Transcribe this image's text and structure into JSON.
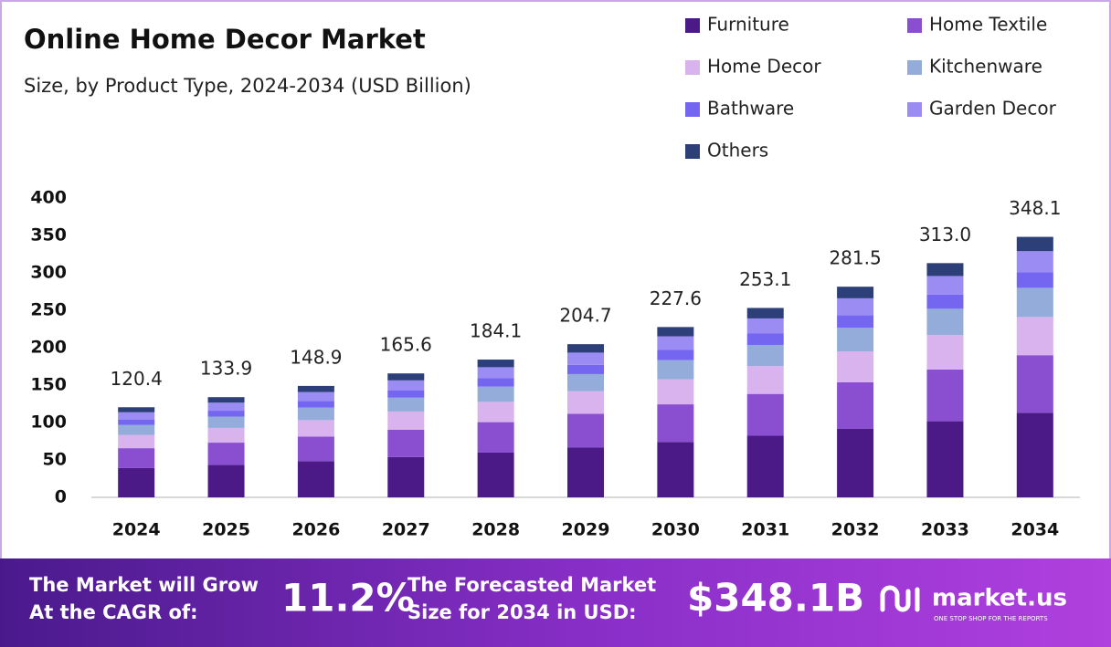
{
  "chart_data": {
    "type": "stacked-bar",
    "title": "Online Home Decor Market",
    "subtitle": "Size, by Product Type, 2024-2034 (USD Billion)",
    "categories": [
      "2024",
      "2025",
      "2026",
      "2027",
      "2028",
      "2029",
      "2030",
      "2031",
      "2032",
      "2033",
      "2034"
    ],
    "series": [
      {
        "name": "Furniture",
        "color": "#4b1a87",
        "values": [
          39.1,
          43.5,
          48.4,
          53.8,
          59.8,
          66.5,
          74.0,
          82.3,
          91.5,
          101.7,
          113
        ]
      },
      {
        "name": "Home Textile",
        "color": "#8a4fd0",
        "values": [
          26.6,
          29.6,
          32.9,
          36.6,
          40.7,
          45.2,
          50.3,
          55.9,
          62.2,
          69.2,
          77
        ]
      },
      {
        "name": "Home Decor",
        "color": "#d9b3ee",
        "values": [
          17.7,
          19.7,
          21.9,
          24.3,
          27.1,
          30.1,
          33.5,
          37.2,
          41.4,
          46.0,
          51
        ]
      },
      {
        "name": "Kitchenware",
        "color": "#93acd9",
        "values": [
          13.5,
          15.0,
          16.7,
          18.5,
          20.6,
          22.9,
          25.5,
          28.3,
          31.5,
          35.1,
          39
        ]
      },
      {
        "name": "Bathware",
        "color": "#7466f0",
        "values": [
          7.2,
          8.0,
          8.9,
          9.9,
          11.0,
          12.3,
          13.7,
          15.2,
          16.9,
          18.8,
          21
        ]
      },
      {
        "name": "Garden Decor",
        "color": "#9b8cf4",
        "values": [
          9.6,
          10.7,
          11.9,
          13.2,
          14.7,
          16.4,
          18.2,
          20.2,
          22.5,
          25.0,
          28
        ]
      },
      {
        "name": "Others",
        "color": "#2c3f78",
        "values": [
          6.7,
          7.4,
          8.2,
          9.3,
          10.2,
          11.3,
          12.4,
          14.0,
          15.5,
          17.2,
          19.1
        ]
      }
    ],
    "totals": [
      120.4,
      133.9,
      148.9,
      165.6,
      184.1,
      204.7,
      227.6,
      253.1,
      281.5,
      313.0,
      348.1
    ],
    "total_labels": [
      "120.4",
      "133.9",
      "148.9",
      "165.6",
      "184.1",
      "204.7",
      "227.6",
      "253.1",
      "281.5",
      "313.0",
      "348.1"
    ],
    "ylim": [
      0,
      400
    ],
    "yticks": [
      0,
      50,
      100,
      150,
      200,
      250,
      300,
      350,
      400
    ]
  },
  "footer": {
    "grow_line1": "The Market will Grow",
    "grow_line2": "At the CAGR of:",
    "cagr": "11.2%",
    "forecast_line1": "The Forecasted Market",
    "forecast_line2": "Size for 2034 in USD:",
    "forecast": "$348.1B",
    "brand": "market.us",
    "tagline": "ONE STOP SHOP FOR THE REPORTS"
  }
}
